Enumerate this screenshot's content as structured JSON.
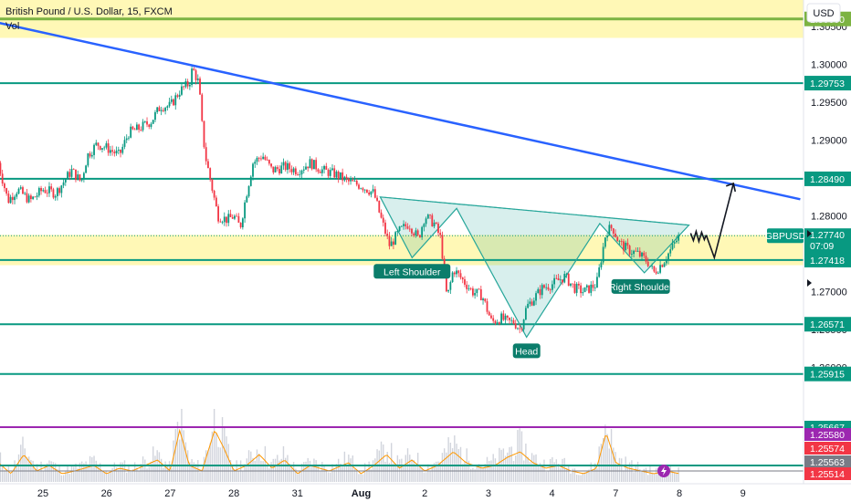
{
  "header": {
    "title": "British Pound / U.S. Dollar, 15, FXCM",
    "volume_label": "Vol",
    "currency_button": "USD"
  },
  "chart_data": {
    "type": "candlestick",
    "symbol": "GBPUSD",
    "xlabel": "",
    "ylabel": "",
    "ylim": [
      1.2555,
      1.3085
    ],
    "y_ticks": [
      1.26,
      1.265,
      1.27,
      1.275,
      1.28,
      1.285,
      1.29,
      1.295,
      1.3,
      1.305
    ],
    "y_tick_labels": [
      "1.26000",
      "1.26500",
      "1.27000",
      "1.27500",
      "1.28000",
      "1.28500",
      "1.29000",
      "1.29500",
      "1.30000",
      "1.30500"
    ],
    "x_ticks": [
      {
        "label": "25",
        "day": 0
      },
      {
        "label": "26",
        "day": 1
      },
      {
        "label": "27",
        "day": 2
      },
      {
        "label": "28",
        "day": 3
      },
      {
        "label": "31",
        "day": 4
      },
      {
        "label": "Aug",
        "day": 5
      },
      {
        "label": "2",
        "day": 6
      },
      {
        "label": "3",
        "day": 7
      },
      {
        "label": "4",
        "day": 8
      },
      {
        "label": "7",
        "day": 9
      },
      {
        "label": "8",
        "day": 10
      },
      {
        "label": "9",
        "day": 11
      }
    ],
    "price_path": [
      [
        -0.7,
        1.287
      ],
      [
        -0.55,
        1.282
      ],
      [
        -0.4,
        1.2835
      ],
      [
        -0.2,
        1.282
      ],
      [
        0.0,
        1.2835
      ],
      [
        0.2,
        1.283
      ],
      [
        0.45,
        1.286
      ],
      [
        0.6,
        1.2845
      ],
      [
        0.7,
        1.288
      ],
      [
        0.85,
        1.2895
      ],
      [
        1.0,
        1.289
      ],
      [
        1.2,
        1.288
      ],
      [
        1.35,
        1.291
      ],
      [
        1.5,
        1.2915
      ],
      [
        1.7,
        1.2925
      ],
      [
        1.85,
        1.2945
      ],
      [
        2.0,
        1.2945
      ],
      [
        2.15,
        1.2965
      ],
      [
        2.3,
        1.2975
      ],
      [
        2.35,
        1.2995
      ],
      [
        2.45,
        1.2975
      ],
      [
        2.5,
        1.292
      ],
      [
        2.55,
        1.288
      ],
      [
        2.65,
        1.284
      ],
      [
        2.75,
        1.28
      ],
      [
        2.9,
        1.2795
      ],
      [
        3.0,
        1.28
      ],
      [
        3.1,
        1.2785
      ],
      [
        3.2,
        1.283
      ],
      [
        3.3,
        1.287
      ],
      [
        3.45,
        1.288
      ],
      [
        3.6,
        1.286
      ],
      [
        3.8,
        1.2865
      ],
      [
        4.0,
        1.286
      ],
      [
        4.2,
        1.287
      ],
      [
        4.4,
        1.286
      ],
      [
        4.6,
        1.2855
      ],
      [
        4.8,
        1.2845
      ],
      [
        5.0,
        1.284
      ],
      [
        5.2,
        1.283
      ],
      [
        5.3,
        1.28
      ],
      [
        5.45,
        1.276
      ],
      [
        5.6,
        1.278
      ],
      [
        5.75,
        1.279
      ],
      [
        5.9,
        1.277
      ],
      [
        6.0,
        1.28
      ],
      [
        6.15,
        1.279
      ],
      [
        6.25,
        1.277
      ],
      [
        6.35,
        1.269
      ],
      [
        6.45,
        1.273
      ],
      [
        6.6,
        1.2715
      ],
      [
        6.75,
        1.27
      ],
      [
        6.9,
        1.2695
      ],
      [
        7.05,
        1.266
      ],
      [
        7.2,
        1.2665
      ],
      [
        7.3,
        1.266
      ],
      [
        7.4,
        1.266
      ],
      [
        7.5,
        1.265
      ],
      [
        7.6,
        1.268
      ],
      [
        7.7,
        1.269
      ],
      [
        7.85,
        1.2705
      ],
      [
        8.0,
        1.271
      ],
      [
        8.2,
        1.272
      ],
      [
        8.35,
        1.2705
      ],
      [
        8.5,
        1.27
      ],
      [
        8.7,
        1.271
      ],
      [
        8.85,
        1.278
      ],
      [
        8.95,
        1.2785
      ],
      [
        9.05,
        1.2765
      ],
      [
        9.2,
        1.2755
      ],
      [
        9.35,
        1.275
      ],
      [
        9.5,
        1.274
      ],
      [
        9.6,
        1.2725
      ],
      [
        9.75,
        1.274
      ],
      [
        9.9,
        1.276
      ],
      [
        10.0,
        1.2774
      ]
    ],
    "volume_profile": [
      [
        -0.7,
        0.35
      ],
      [
        -0.5,
        0.15
      ],
      [
        -0.3,
        0.5
      ],
      [
        -0.1,
        0.2
      ],
      [
        0.1,
        0.3
      ],
      [
        0.3,
        0.15
      ],
      [
        0.5,
        0.2
      ],
      [
        0.8,
        0.3
      ],
      [
        1.0,
        0.15
      ],
      [
        1.2,
        0.25
      ],
      [
        1.4,
        0.2
      ],
      [
        1.6,
        0.3
      ],
      [
        1.8,
        0.4
      ],
      [
        2.0,
        0.2
      ],
      [
        2.15,
        0.95
      ],
      [
        2.3,
        0.3
      ],
      [
        2.5,
        0.2
      ],
      [
        2.7,
        0.95
      ],
      [
        2.85,
        0.6
      ],
      [
        3.0,
        0.2
      ],
      [
        3.2,
        0.3
      ],
      [
        3.4,
        0.5
      ],
      [
        3.6,
        0.25
      ],
      [
        3.8,
        0.4
      ],
      [
        4.0,
        0.15
      ],
      [
        4.2,
        0.3
      ],
      [
        4.5,
        0.2
      ],
      [
        4.8,
        0.35
      ],
      [
        5.0,
        0.15
      ],
      [
        5.2,
        0.3
      ],
      [
        5.4,
        0.5
      ],
      [
        5.6,
        0.25
      ],
      [
        5.8,
        0.4
      ],
      [
        6.0,
        0.2
      ],
      [
        6.2,
        0.3
      ],
      [
        6.45,
        0.55
      ],
      [
        6.65,
        0.35
      ],
      [
        6.9,
        0.25
      ],
      [
        7.1,
        0.3
      ],
      [
        7.3,
        0.45
      ],
      [
        7.5,
        0.55
      ],
      [
        7.7,
        0.35
      ],
      [
        7.9,
        0.25
      ],
      [
        8.1,
        0.3
      ],
      [
        8.3,
        0.2
      ],
      [
        8.5,
        0.15
      ],
      [
        8.7,
        0.25
      ],
      [
        8.85,
        0.9
      ],
      [
        9.0,
        0.35
      ],
      [
        9.2,
        0.25
      ],
      [
        9.4,
        0.2
      ],
      [
        9.6,
        0.15
      ],
      [
        9.8,
        0.2
      ],
      [
        10.0,
        0.15
      ]
    ],
    "horizontal_levels": [
      {
        "value": 1.306,
        "label": "1.30600",
        "color": "#7cb342"
      },
      {
        "value": 1.29753,
        "label": "1.29753",
        "color": "#089981"
      },
      {
        "value": 1.2849,
        "label": "1.28490",
        "color": "#089981"
      },
      {
        "value": 1.27418,
        "label": "1.27418",
        "color": "#089981"
      },
      {
        "value": 1.26571,
        "label": "1.26571",
        "color": "#089981"
      },
      {
        "value": 1.25915,
        "label": "1.25915",
        "color": "#089981"
      }
    ],
    "zones": [
      {
        "from": 1.3035,
        "to": 1.3085,
        "color": "#fff59d"
      },
      {
        "from": 1.2735,
        "to": 1.2775,
        "color": "#fff59d"
      }
    ],
    "trendline": {
      "from": [
        -0.7,
        1.3055
      ],
      "to": [
        11.9,
        1.2822
      ],
      "color": "#2962ff"
    },
    "current_price": {
      "symbol": "GBPUSD",
      "price": "1.27740",
      "countdown": "07:09",
      "value": 1.2774
    },
    "pattern": {
      "labels": [
        "Left Shoulder",
        "Head",
        "Right Shoulder"
      ],
      "points": [
        [
          5.3,
          1.2825
        ],
        [
          5.8,
          1.2745
        ],
        [
          6.5,
          1.281
        ],
        [
          7.6,
          1.264
        ],
        [
          8.75,
          1.279
        ],
        [
          9.45,
          1.2725
        ],
        [
          10.15,
          1.2788
        ]
      ]
    },
    "projection": [
      [
        10.35,
        1.277
      ],
      [
        10.55,
        1.2745
      ],
      [
        10.85,
        1.2843
      ]
    ],
    "volume_levels": [
      {
        "label": "1.25667",
        "color": "#089981"
      },
      {
        "label": "1.25580",
        "color": "#9c27b0"
      },
      {
        "label": "1.25574",
        "color": "#f23645"
      },
      {
        "label": "1.25563",
        "color": "#787b86"
      },
      {
        "label": "1.25514",
        "color": "#f23645"
      }
    ],
    "colors": {
      "up": "#089981",
      "down": "#f23645",
      "volume_line": "#ff9800",
      "volume_bars": "#d1d4dc",
      "purple": "#9c27b0"
    }
  }
}
